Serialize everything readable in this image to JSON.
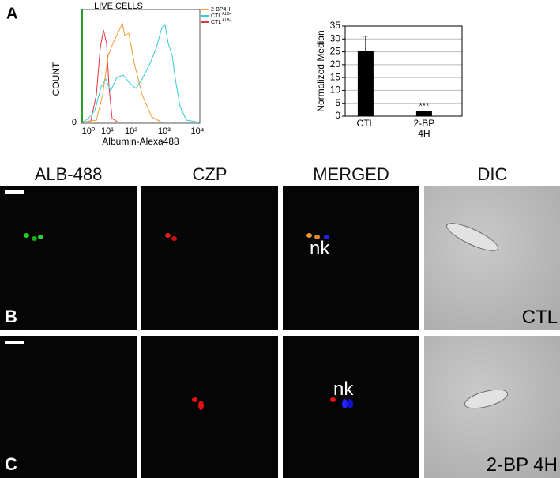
{
  "panel_a": {
    "label": "A",
    "histogram": {
      "title": "LIVE CELLS",
      "y_label": "COUNT",
      "x_label": "Albumin-Alexa488",
      "y_tick": "0",
      "x_tick_labels": [
        "10⁰",
        "10¹",
        "10²",
        "10³",
        "10⁴"
      ],
      "legend": [
        {
          "name": "2-BP4H",
          "color": "#f39c34"
        },
        {
          "name": "CTL",
          "sup": "ALB+",
          "color": "#33c9d8"
        },
        {
          "name": "CTL",
          "sup": "ALB−",
          "color": "#e8323c"
        }
      ]
    }
  },
  "chart_data": {
    "type": "bar",
    "y_label": "Normalized Median",
    "categories": [
      "CTL",
      "2-BP 4H"
    ],
    "values": [
      25.3,
      2
    ],
    "errors": [
      5.8,
      null
    ],
    "annotation": "***",
    "color": "#000000",
    "ylim": [
      0,
      35
    ],
    "yticks": [
      0,
      5,
      10,
      15,
      20,
      25,
      30,
      35
    ],
    "grid": true
  },
  "columns": [
    "ALB-488",
    "CZP",
    "MERGED",
    "DIC"
  ],
  "rows": [
    {
      "label": "B",
      "condition": "CTL",
      "annotation": "nk"
    },
    {
      "label": "C",
      "condition": "2-BP 4H",
      "annotation": "nk"
    }
  ]
}
